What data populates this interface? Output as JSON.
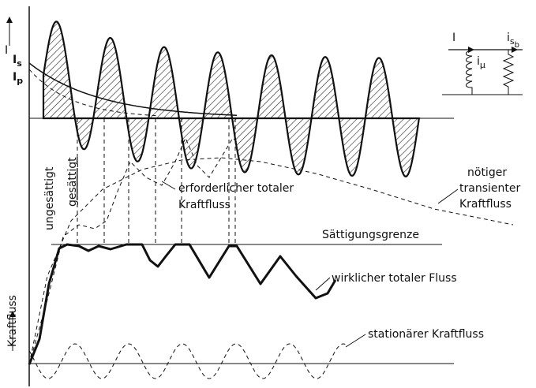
{
  "top_axis_label": "I",
  "current_labels": [
    {
      "symbol": "I",
      "subscript": "s"
    },
    {
      "symbol": "I",
      "subscript": "p"
    }
  ],
  "circuit": {
    "input": "I",
    "magnetizing": {
      "symbol": "i",
      "subscript": "μ"
    },
    "secondary": {
      "symbol": "i",
      "subscript": "s",
      "subsub": "b"
    }
  },
  "region_labels": [
    "ungesättigt",
    "gesättigt"
  ],
  "required_flux": [
    "erforderlicher totaler",
    "Kraftfluss"
  ],
  "transient_flux": [
    "nötiger",
    "transienter",
    "Kraftfluss"
  ],
  "saturation_limit": "Sättigungsgrenze",
  "actual_flux": "wirklicher totaler Fluss",
  "flux_axis_label": "Kraftfluss",
  "stationary_flux": "stationärer Kraftfluss"
}
